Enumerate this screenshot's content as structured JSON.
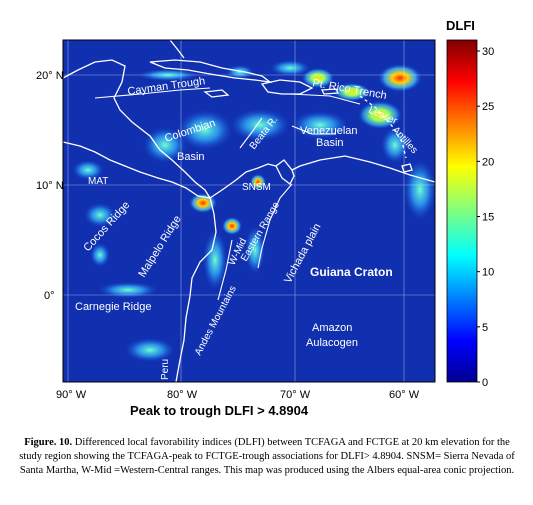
{
  "colorbar": {
    "title": "DLFI",
    "ticks": [
      "30",
      "25",
      "20",
      "15",
      "10",
      "5",
      "0"
    ],
    "min": 0,
    "max": 31
  },
  "lat_ticks": [
    "20° N",
    "10° N",
    "0°"
  ],
  "lon_ticks": [
    "90° W",
    "80° W",
    "70° W",
    "60° W"
  ],
  "labels": {
    "cayman_trough": "Cayman Trough",
    "pt_rico_trench": "Pt. Rico Trench",
    "lesser_antilles_1": "Lesser",
    "lesser_antilles_2": "Antilles",
    "beata_r": "Beata R.",
    "colombian_basin_1": "Colombian",
    "colombian_basin_2": "Basin",
    "venezuelan_basin_1": "Venezuelan",
    "venezuelan_basin_2": "Basin",
    "mat": "MAT",
    "snsm": "SNSM",
    "cocos_ridge": "Cocos Ridge",
    "malpelo_ridge": "Malpelo Ridge",
    "eastern_range": "Eastern Range",
    "vichada_plain": "Vichada plain",
    "guiana_craton": "Guiana Craton",
    "carnegie_ridge": "Carnegie Ridge",
    "andes_mountains": "Andes Mountains",
    "w_mid": "W-Mid",
    "amazon_1": "Amazon",
    "amazon_2": "Aulacogen",
    "peru": "Peru"
  },
  "subtitle": "Peak  to trough  DLFI > 4.8904",
  "caption": {
    "figure_label": "Figure. 10.",
    "text": " Differenced local favorability indices (DLFI) between TCFAGA and FCTGE at 20 km elevation for the study region showing the TCFAGA-peak to FCTGE-trough associations for DLFI> 4.8904. SNSM= Sierra Nevada of Santa Martha, W-Mid =Western-Central ranges. This map was produced using the Albers equal-area conic projection."
  }
}
